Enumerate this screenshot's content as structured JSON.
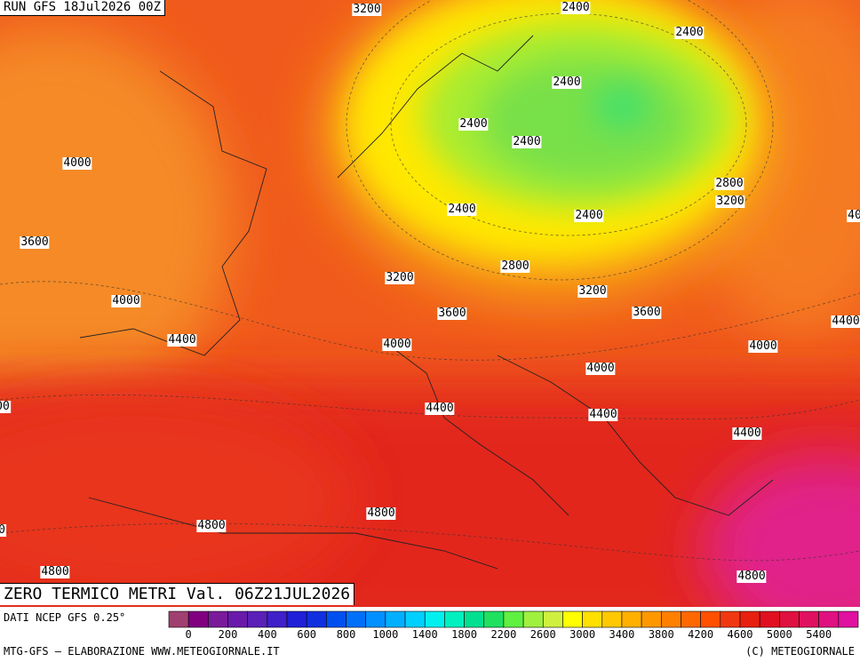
{
  "header": {
    "run": "RUN GFS 18Jul2026 00Z"
  },
  "map": {
    "title": "ZERO TERMICO METRI Val. 06Z21JUL2026",
    "contour_labels": [
      "3200",
      "2400",
      "2400",
      "2400",
      "2400",
      "2400",
      "4000",
      "2800",
      "3200",
      "2400",
      "2400",
      "40",
      "3600",
      "2800",
      "3200",
      "3200",
      "4000",
      "3600",
      "3600",
      "4400",
      "4400",
      "4000",
      "4000",
      "4000",
      "00",
      "4400",
      "4400",
      "4400",
      "4800",
      "4800",
      "0",
      "4800",
      "4800"
    ]
  },
  "legend": {
    "source": "DATI NCEP GFS 0.25°",
    "labels": [
      "0",
      "200",
      "400",
      "600",
      "800",
      "1000",
      "1400",
      "1800",
      "2200",
      "2600",
      "3000",
      "3400",
      "3800",
      "4200",
      "4600",
      "5000",
      "5400"
    ],
    "colors": [
      "#a04070",
      "#800080",
      "#7a1a9a",
      "#6a1aaa",
      "#5a20b8",
      "#4020c8",
      "#2020d8",
      "#1030e0",
      "#0050f0",
      "#0070f8",
      "#0090ff",
      "#00b0ff",
      "#00d0ff",
      "#00f0f0",
      "#00f0c0",
      "#00e090",
      "#20e060",
      "#60f040",
      "#a0f040",
      "#d0f040",
      "#ffff00",
      "#ffe000",
      "#ffc800",
      "#ffb000",
      "#ff9800",
      "#ff8000",
      "#ff6800",
      "#ff5000",
      "#f03810",
      "#e82010",
      "#e01020",
      "#e01040",
      "#e01060",
      "#e01080",
      "#e010a0"
    ]
  },
  "footer": {
    "credit": "MTG-GFS — ELABORAZIONE WWW.METEOGIORNALE.IT",
    "copyright": "(C) METEOGIORNALE"
  }
}
